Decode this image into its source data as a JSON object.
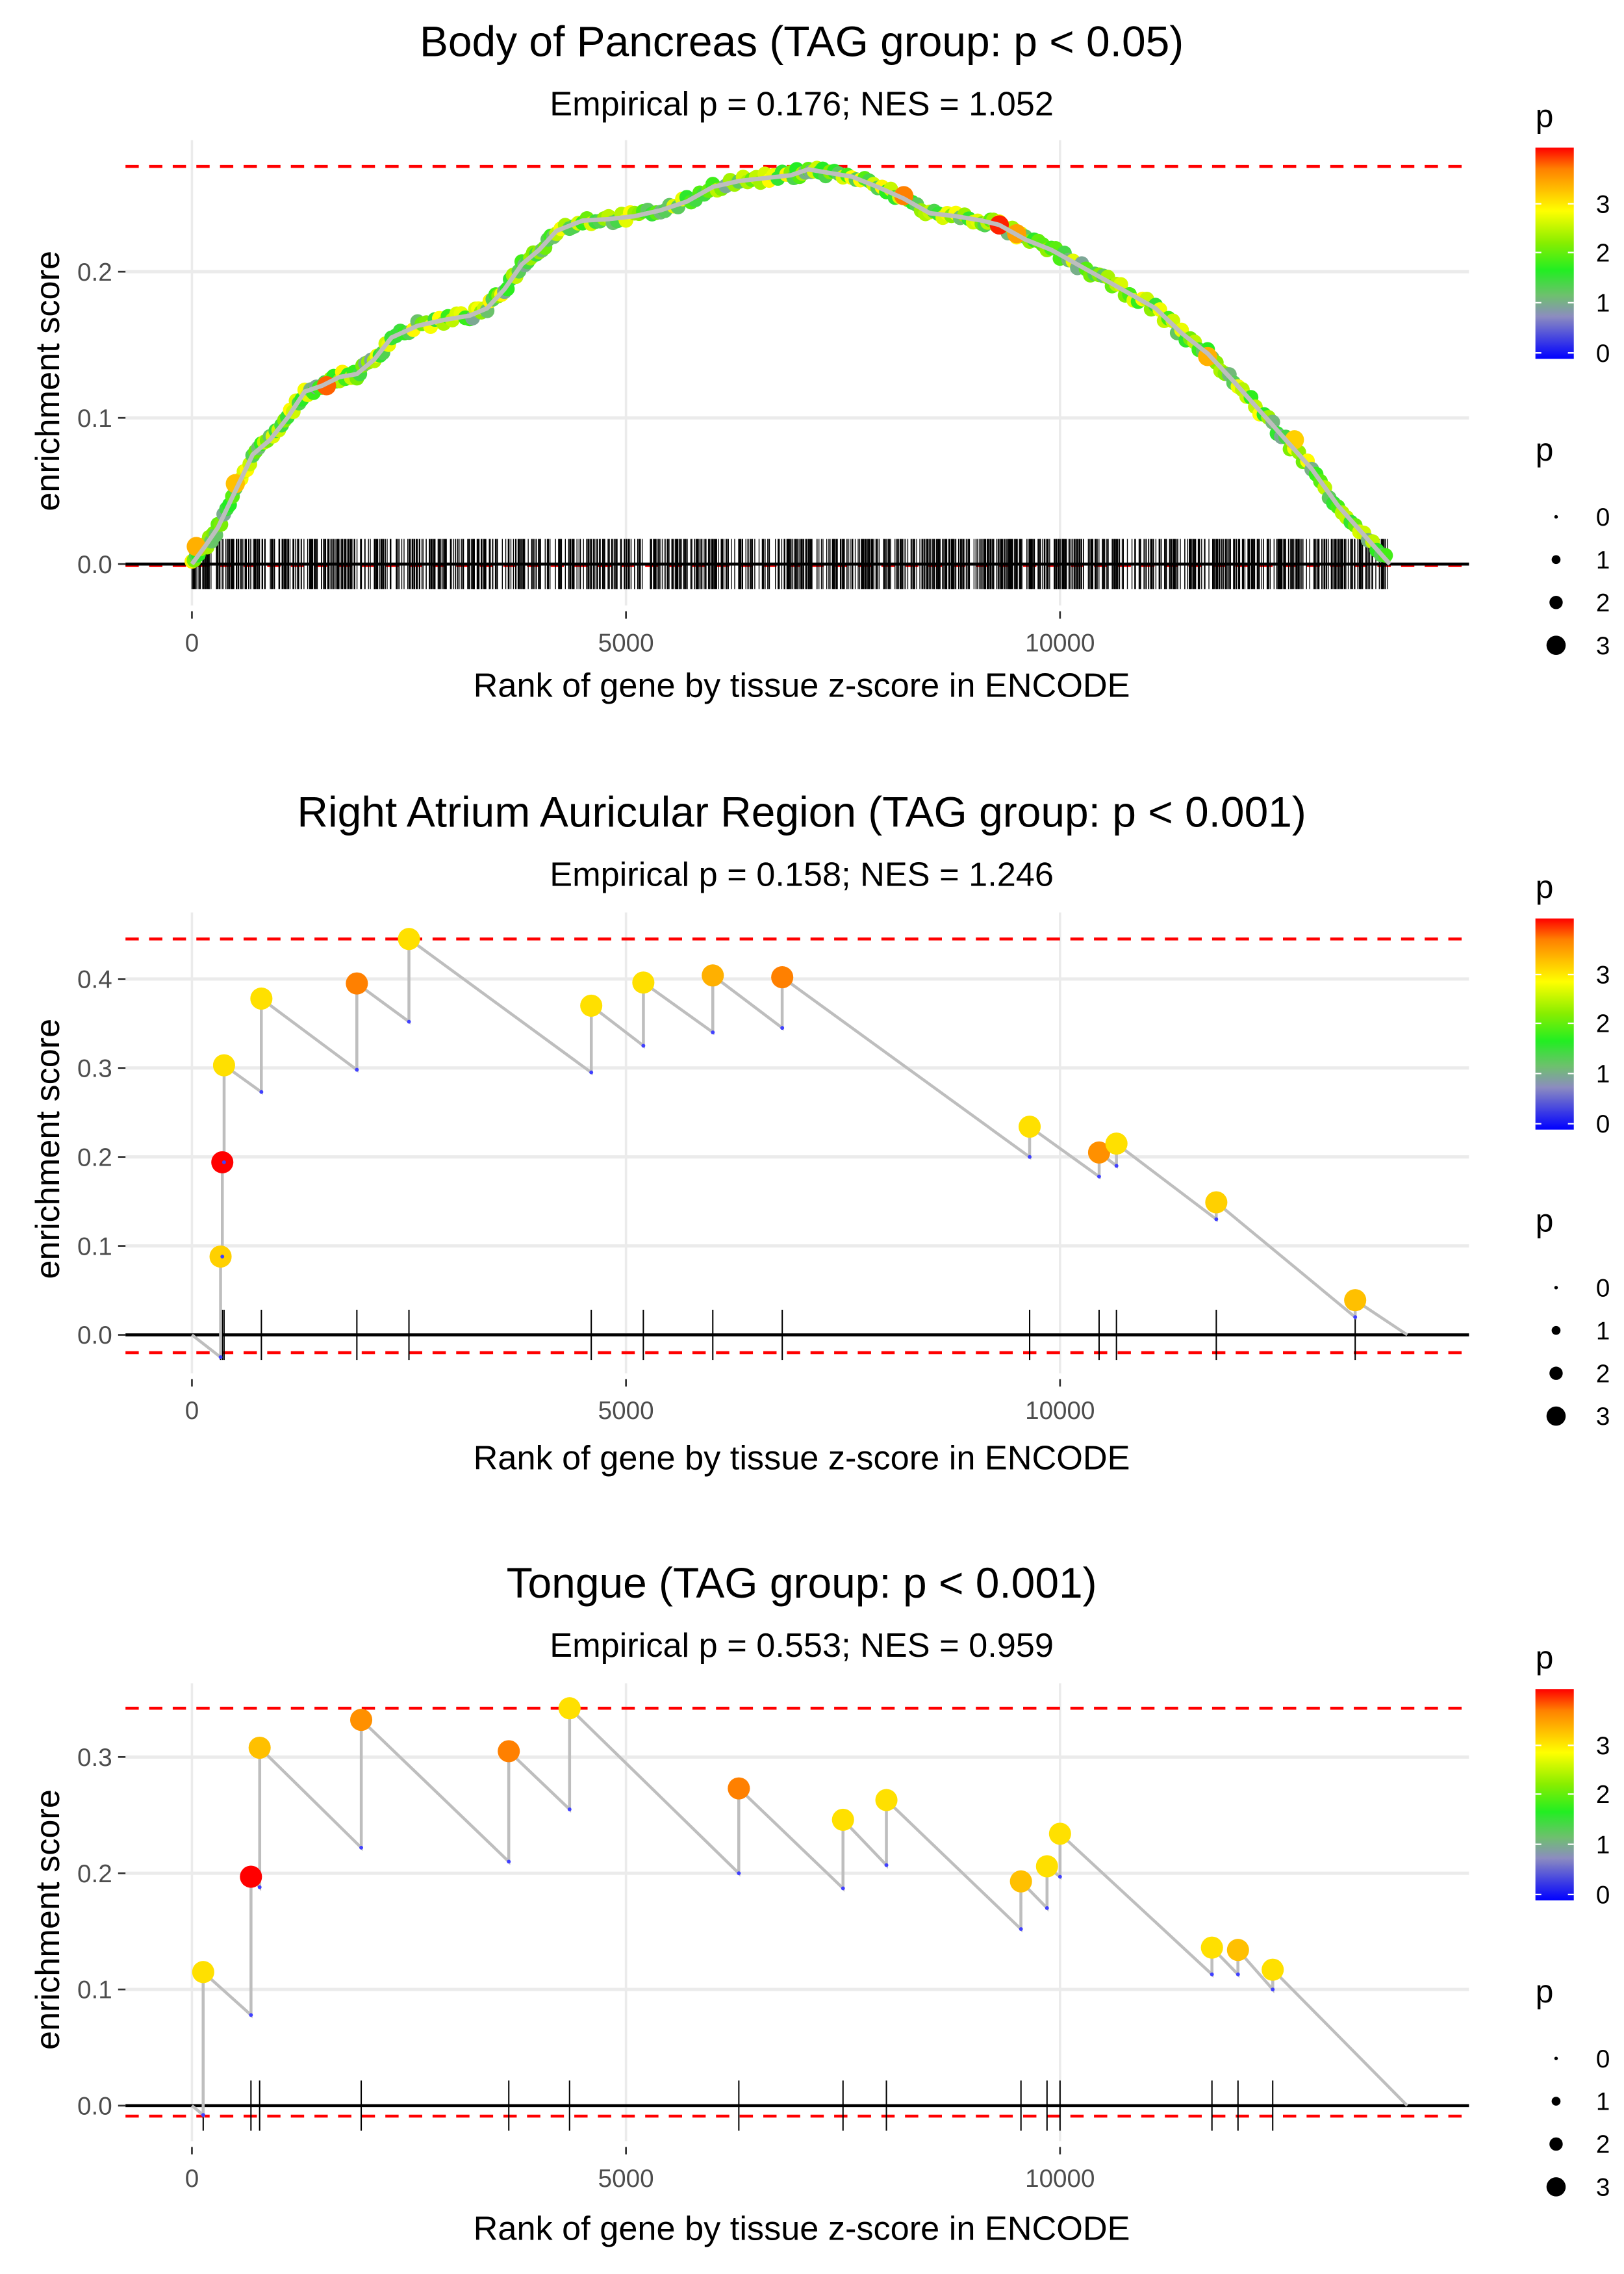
{
  "chart_data": [
    {
      "type": "line",
      "title": "Body of Pancreas (TAG group: p < 0.05)",
      "subtitle": "Empirical p = 0.176; NES = 1.052",
      "xlabel": "Rank of gene by tissue z-score in ENCODE",
      "ylabel": "enrichment score",
      "xlim": [
        -800,
        14800
      ],
      "ylim": [
        -0.02,
        0.29
      ],
      "xticks": [
        0,
        5000,
        10000
      ],
      "xtick_labels": [
        "0",
        "5000",
        "10000"
      ],
      "yticks": [
        0.0,
        0.1,
        0.2
      ],
      "ytick_labels": [
        "0.0",
        "0.1",
        "0.2"
      ],
      "max_es_line": 0.272,
      "min_es_line": -0.001,
      "grid": true,
      "dense": true,
      "curve": [
        [
          0,
          0.0
        ],
        [
          150,
          0.012
        ],
        [
          300,
          0.025
        ],
        [
          500,
          0.05
        ],
        [
          700,
          0.075
        ],
        [
          900,
          0.085
        ],
        [
          1100,
          0.1
        ],
        [
          1300,
          0.118
        ],
        [
          1500,
          0.122
        ],
        [
          1700,
          0.128
        ],
        [
          1900,
          0.13
        ],
        [
          2100,
          0.14
        ],
        [
          2300,
          0.155
        ],
        [
          2600,
          0.163
        ],
        [
          2900,
          0.167
        ],
        [
          3200,
          0.17
        ],
        [
          3400,
          0.175
        ],
        [
          3600,
          0.188
        ],
        [
          3800,
          0.205
        ],
        [
          4000,
          0.215
        ],
        [
          4200,
          0.228
        ],
        [
          4500,
          0.235
        ],
        [
          4800,
          0.236
        ],
        [
          5100,
          0.238
        ],
        [
          5400,
          0.242
        ],
        [
          5700,
          0.248
        ],
        [
          6000,
          0.258
        ],
        [
          6300,
          0.262
        ],
        [
          6600,
          0.264
        ],
        [
          6900,
          0.266
        ],
        [
          7100,
          0.27
        ],
        [
          7300,
          0.268
        ],
        [
          7600,
          0.265
        ],
        [
          7900,
          0.258
        ],
        [
          8200,
          0.25
        ],
        [
          8500,
          0.24
        ],
        [
          8800,
          0.238
        ],
        [
          9100,
          0.235
        ],
        [
          9300,
          0.232
        ],
        [
          9600,
          0.222
        ],
        [
          9900,
          0.215
        ],
        [
          10200,
          0.205
        ],
        [
          10500,
          0.195
        ],
        [
          10800,
          0.185
        ],
        [
          11100,
          0.175
        ],
        [
          11400,
          0.158
        ],
        [
          11700,
          0.144
        ],
        [
          12000,
          0.125
        ],
        [
          12300,
          0.105
        ],
        [
          12600,
          0.085
        ],
        [
          12900,
          0.065
        ],
        [
          13200,
          0.04
        ],
        [
          13500,
          0.02
        ],
        [
          13800,
          0.0
        ]
      ],
      "highlight_points": [
        {
          "x": 1550,
          "y": 0.122,
          "p": 3.7
        },
        {
          "x": 500,
          "y": 0.055,
          "p": 3.2
        },
        {
          "x": 8200,
          "y": 0.252,
          "p": 3.6
        },
        {
          "x": 9300,
          "y": 0.232,
          "p": 3.9
        },
        {
          "x": 9500,
          "y": 0.226,
          "p": 3.4
        },
        {
          "x": 11700,
          "y": 0.142,
          "p": 3.3
        },
        {
          "x": 12700,
          "y": 0.085,
          "p": 3.1
        },
        {
          "x": 50,
          "y": 0.012,
          "p": 3.3
        }
      ],
      "rug_count": 1200,
      "rug_range": [
        0,
        13800
      ],
      "legend": {
        "color_title": "p",
        "color_ticks": [
          "0",
          "1",
          "2",
          "3"
        ],
        "size_title": "p",
        "size_ticks": [
          "0",
          "1",
          "2",
          "3"
        ],
        "placement": "right"
      }
    },
    {
      "type": "line",
      "title": "Right Atrium Auricular Region (TAG group: p < 0.001)",
      "subtitle": "Empirical p = 0.158; NES = 1.246",
      "xlabel": "Rank of gene by tissue z-score in ENCODE",
      "ylabel": "enrichment score",
      "xlim": [
        -800,
        14800
      ],
      "ylim": [
        -0.04,
        0.47
      ],
      "xticks": [
        0,
        5000,
        10000
      ],
      "xtick_labels": [
        "0",
        "5000",
        "10000"
      ],
      "yticks": [
        0.0,
        0.1,
        0.2,
        0.3,
        0.4
      ],
      "ytick_labels": [
        "0.0",
        "0.1",
        "0.2",
        "0.3",
        "0.4"
      ],
      "max_es_line": 0.445,
      "min_es_line": -0.02,
      "grid": true,
      "dense": false,
      "hits": [
        {
          "x": 330,
          "low": -0.025,
          "high": 0.088,
          "p": 3.1
        },
        {
          "x": 350,
          "low": 0.088,
          "high": 0.194,
          "p": 4.0
        },
        {
          "x": 370,
          "low": 0.194,
          "high": 0.303,
          "p": 3.0
        },
        {
          "x": 800,
          "low": 0.273,
          "high": 0.378,
          "p": 3.0
        },
        {
          "x": 1900,
          "low": 0.298,
          "high": 0.395,
          "p": 3.6
        },
        {
          "x": 2500,
          "low": 0.352,
          "high": 0.445,
          "p": 3.0
        },
        {
          "x": 4600,
          "low": 0.295,
          "high": 0.37,
          "p": 3.0
        },
        {
          "x": 5200,
          "low": 0.325,
          "high": 0.396,
          "p": 3.0
        },
        {
          "x": 6000,
          "low": 0.34,
          "high": 0.404,
          "p": 3.3
        },
        {
          "x": 6800,
          "low": 0.345,
          "high": 0.402,
          "p": 3.6
        },
        {
          "x": 9650,
          "low": 0.2,
          "high": 0.234,
          "p": 3.0
        },
        {
          "x": 10450,
          "low": 0.178,
          "high": 0.205,
          "p": 3.5
        },
        {
          "x": 10650,
          "low": 0.19,
          "high": 0.215,
          "p": 3.0
        },
        {
          "x": 11800,
          "low": 0.13,
          "high": 0.149,
          "p": 3.1
        },
        {
          "x": 13400,
          "low": 0.02,
          "high": 0.039,
          "p": 3.2
        }
      ],
      "end": [
        14000,
        0.0
      ],
      "start": [
        0,
        0.0
      ],
      "legend": {
        "color_title": "p",
        "color_ticks": [
          "0",
          "1",
          "2",
          "3"
        ],
        "size_title": "p",
        "size_ticks": [
          "0",
          "1",
          "2",
          "3"
        ],
        "placement": "right"
      }
    },
    {
      "type": "line",
      "title": "Tongue (TAG group: p < 0.001)",
      "subtitle": "Empirical p = 0.553; NES = 0.959",
      "xlabel": "Rank of gene by tissue z-score in ENCODE",
      "ylabel": "enrichment score",
      "xlim": [
        -800,
        14800
      ],
      "ylim": [
        -0.03,
        0.36
      ],
      "xticks": [
        0,
        5000,
        10000
      ],
      "xtick_labels": [
        "0",
        "5000",
        "10000"
      ],
      "yticks": [
        0.0,
        0.1,
        0.2,
        0.3
      ],
      "ytick_labels": [
        "0.0",
        "0.1",
        "0.2",
        "0.3"
      ],
      "max_es_line": 0.342,
      "min_es_line": -0.009,
      "grid": true,
      "dense": false,
      "hits": [
        {
          "x": 130,
          "low": -0.008,
          "high": 0.115,
          "p": 3.0
        },
        {
          "x": 680,
          "low": 0.078,
          "high": 0.197,
          "p": 4.0
        },
        {
          "x": 780,
          "low": 0.188,
          "high": 0.308,
          "p": 3.2
        },
        {
          "x": 1950,
          "low": 0.222,
          "high": 0.332,
          "p": 3.5
        },
        {
          "x": 3650,
          "low": 0.21,
          "high": 0.305,
          "p": 3.6
        },
        {
          "x": 4350,
          "low": 0.255,
          "high": 0.342,
          "p": 3.0
        },
        {
          "x": 6300,
          "low": 0.2,
          "high": 0.273,
          "p": 3.6
        },
        {
          "x": 7500,
          "low": 0.187,
          "high": 0.246,
          "p": 3.0
        },
        {
          "x": 8000,
          "low": 0.207,
          "high": 0.263,
          "p": 3.0
        },
        {
          "x": 9550,
          "low": 0.152,
          "high": 0.193,
          "p": 3.2
        },
        {
          "x": 9850,
          "low": 0.17,
          "high": 0.206,
          "p": 3.0
        },
        {
          "x": 10000,
          "low": 0.197,
          "high": 0.234,
          "p": 3.0
        },
        {
          "x": 11750,
          "low": 0.113,
          "high": 0.136,
          "p": 3.0
        },
        {
          "x": 12050,
          "low": 0.113,
          "high": 0.134,
          "p": 3.2
        },
        {
          "x": 12450,
          "low": 0.1,
          "high": 0.117,
          "p": 3.0
        }
      ],
      "end": [
        14000,
        0.0
      ],
      "start": [
        0,
        0.0
      ],
      "legend": {
        "color_title": "p",
        "color_ticks": [
          "0",
          "1",
          "2",
          "3"
        ],
        "size_title": "p",
        "size_ticks": [
          "0",
          "1",
          "2",
          "3"
        ],
        "placement": "right"
      }
    }
  ],
  "colors": {
    "grid": "#ebebeb",
    "zero_line": "#000000",
    "es_line": "#bebebe",
    "dashed": "#ff0000",
    "axis_text": "#4d4d4d"
  }
}
